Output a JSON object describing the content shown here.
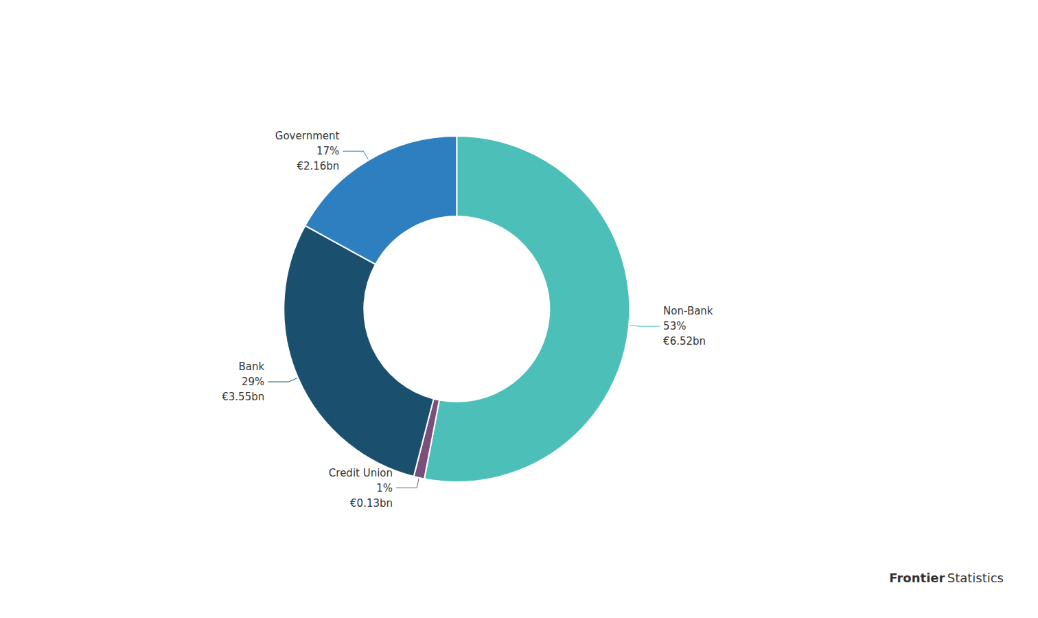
{
  "chart_data": {
    "type": "pie",
    "categories": [
      "Non-Bank",
      "Credit Union",
      "Bank",
      "Government"
    ],
    "values": [
      53,
      1,
      29,
      17
    ],
    "value_labels": [
      "53%",
      "1%",
      "29%",
      "17%"
    ],
    "amount_labels": [
      "€6.52bn",
      "€0.13bn",
      "€3.55bn",
      "€2.16bn"
    ],
    "colors": [
      "#4BBFB8",
      "#7B4F7B",
      "#1A4F6E",
      "#2E7FBF"
    ],
    "data_labels": true,
    "legend": false,
    "annotations": [
      "Frontier",
      "Statistics"
    ]
  }
}
